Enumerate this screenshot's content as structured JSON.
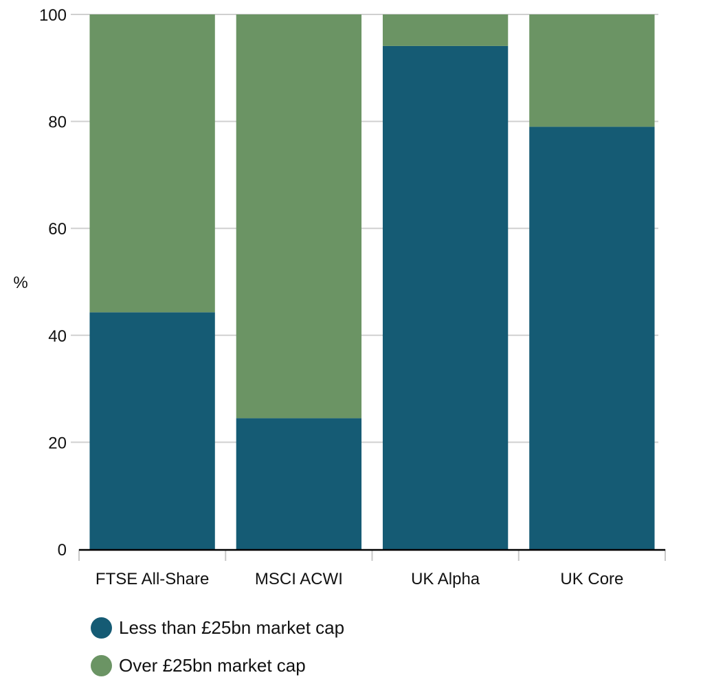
{
  "chart_data": {
    "type": "bar",
    "stacked": true,
    "title": "",
    "xlabel": "",
    "ylabel": "%",
    "ylim": [
      0,
      100
    ],
    "yticks": [
      0,
      20,
      40,
      60,
      80,
      100
    ],
    "grid": true,
    "categories": [
      "FTSE All-Share",
      "MSCI ACWI",
      "UK Alpha",
      "UK Core"
    ],
    "series": [
      {
        "name": "Less than £25bn market cap",
        "color": "#155b74",
        "values": [
          44.3,
          24.5,
          94.1,
          79.0
        ]
      },
      {
        "name": "Over £25bn market cap",
        "color": "#6b9464",
        "values": [
          55.7,
          75.5,
          5.9,
          21.0
        ]
      }
    ],
    "legend_position": "bottom-left"
  }
}
